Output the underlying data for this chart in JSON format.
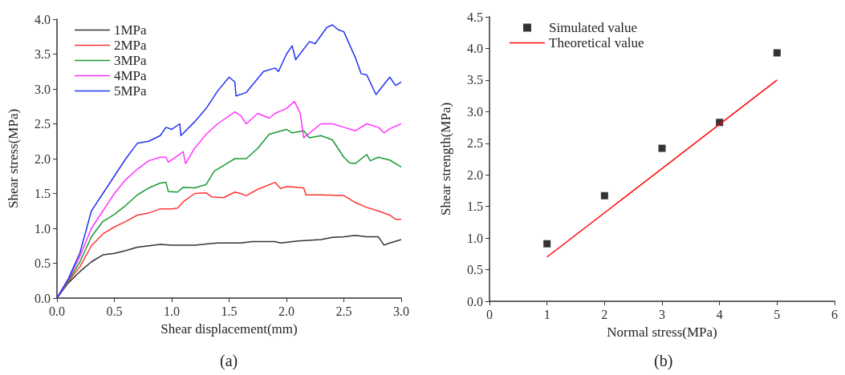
{
  "chart_data": [
    {
      "type": "line",
      "xlabel": "Shear displacement(mm)",
      "ylabel": "Shear stress(MPa)",
      "annotations": [
        "(a)"
      ],
      "legend": "top left",
      "grid": false,
      "marker": "none",
      "line_style": "solid",
      "xlim": [
        0,
        3
      ],
      "xticks": [
        {
          "value": 0,
          "label": "0.0"
        },
        0.5,
        {
          "value": 1,
          "label": "1.0"
        },
        1.5,
        {
          "value": 2,
          "label": "2.0"
        },
        2.5,
        {
          "value": 3,
          "label": "3.0"
        }
      ],
      "ylim": [
        0,
        4
      ],
      "yticks": [
        {
          "value": 0,
          "label": "0.0"
        },
        0.5,
        {
          "value": 1,
          "label": "1.0"
        },
        1.5,
        {
          "value": 2,
          "label": "2.0"
        },
        2.5,
        {
          "value": 3,
          "label": "3.0"
        },
        3.5,
        {
          "value": 4,
          "label": "4.0"
        }
      ],
      "series": [
        {
          "name": "1MPa",
          "color": "#333333",
          "x": [
            0,
            0.1,
            0.2,
            0.3,
            0.4,
            0.5,
            0.6,
            0.7,
            0.8,
            0.9,
            1.0,
            1.2,
            1.4,
            1.6,
            1.7,
            1.9,
            1.95,
            2.1,
            2.3,
            2.4,
            2.5,
            2.6,
            2.7,
            2.8,
            2.85,
            2.9,
            3.0
          ],
          "values": [
            0,
            0.22,
            0.38,
            0.52,
            0.62,
            0.64,
            0.68,
            0.73,
            0.75,
            0.77,
            0.76,
            0.76,
            0.79,
            0.79,
            0.81,
            0.81,
            0.79,
            0.82,
            0.84,
            0.87,
            0.88,
            0.9,
            0.88,
            0.88,
            0.76,
            0.79,
            0.84
          ]
        },
        {
          "name": "2MPa",
          "color": "#ff3333",
          "x": [
            0,
            0.1,
            0.2,
            0.3,
            0.4,
            0.5,
            0.6,
            0.7,
            0.8,
            0.9,
            1.0,
            1.05,
            1.1,
            1.2,
            1.3,
            1.35,
            1.45,
            1.55,
            1.6,
            1.65,
            1.75,
            1.9,
            1.95,
            2.0,
            2.15,
            2.17,
            2.3,
            2.5,
            2.6,
            2.7,
            2.8,
            2.9,
            2.95,
            3.0
          ],
          "values": [
            0,
            0.24,
            0.45,
            0.75,
            0.92,
            1.02,
            1.1,
            1.19,
            1.22,
            1.28,
            1.28,
            1.29,
            1.38,
            1.5,
            1.51,
            1.45,
            1.44,
            1.52,
            1.5,
            1.47,
            1.56,
            1.66,
            1.57,
            1.6,
            1.58,
            1.48,
            1.48,
            1.47,
            1.37,
            1.3,
            1.25,
            1.19,
            1.13,
            1.13
          ]
        },
        {
          "name": "3MPa",
          "color": "#1a9a30",
          "x": [
            0,
            0.1,
            0.2,
            0.3,
            0.4,
            0.5,
            0.6,
            0.7,
            0.8,
            0.9,
            0.95,
            0.97,
            1.05,
            1.1,
            1.2,
            1.3,
            1.37,
            1.5,
            1.55,
            1.65,
            1.75,
            1.85,
            2.0,
            2.05,
            2.15,
            2.2,
            2.3,
            2.4,
            2.5,
            2.55,
            2.6,
            2.7,
            2.73,
            2.8,
            2.9,
            3.0
          ],
          "values": [
            0,
            0.25,
            0.52,
            0.88,
            1.1,
            1.2,
            1.33,
            1.48,
            1.58,
            1.65,
            1.66,
            1.53,
            1.52,
            1.59,
            1.58,
            1.63,
            1.82,
            1.95,
            2.0,
            2.0,
            2.15,
            2.35,
            2.42,
            2.37,
            2.4,
            2.3,
            2.33,
            2.27,
            2.02,
            1.94,
            1.93,
            2.06,
            1.97,
            2.02,
            1.98,
            1.88
          ]
        },
        {
          "name": "4MPa",
          "color": "#ff33ff",
          "x": [
            0,
            0.1,
            0.2,
            0.3,
            0.4,
            0.5,
            0.6,
            0.7,
            0.8,
            0.9,
            0.95,
            0.97,
            1.1,
            1.12,
            1.2,
            1.3,
            1.4,
            1.55,
            1.6,
            1.65,
            1.75,
            1.85,
            1.9,
            2.0,
            2.07,
            2.12,
            2.15,
            2.3,
            2.4,
            2.5,
            2.6,
            2.7,
            2.8,
            2.85,
            2.9,
            3.0
          ],
          "values": [
            0,
            0.27,
            0.6,
            1.0,
            1.25,
            1.5,
            1.7,
            1.85,
            1.97,
            2.02,
            2.02,
            1.95,
            2.1,
            1.93,
            2.15,
            2.35,
            2.5,
            2.67,
            2.62,
            2.5,
            2.65,
            2.58,
            2.65,
            2.72,
            2.82,
            2.65,
            2.3,
            2.5,
            2.5,
            2.45,
            2.4,
            2.5,
            2.45,
            2.37,
            2.43,
            2.5
          ]
        },
        {
          "name": "5MPa",
          "color": "#2233ee",
          "x": [
            0,
            0.1,
            0.2,
            0.3,
            0.4,
            0.5,
            0.6,
            0.7,
            0.8,
            0.9,
            0.95,
            1.0,
            1.07,
            1.08,
            1.2,
            1.3,
            1.4,
            1.5,
            1.55,
            1.56,
            1.65,
            1.8,
            1.9,
            1.93,
            2.0,
            2.05,
            2.08,
            2.2,
            2.25,
            2.35,
            2.4,
            2.45,
            2.5,
            2.6,
            2.65,
            2.7,
            2.78,
            2.9,
            2.95,
            3.0
          ],
          "values": [
            0,
            0.28,
            0.65,
            1.25,
            1.5,
            1.75,
            2.0,
            2.22,
            2.25,
            2.33,
            2.45,
            2.42,
            2.5,
            2.33,
            2.53,
            2.72,
            2.97,
            3.17,
            3.1,
            2.9,
            2.95,
            3.25,
            3.3,
            3.25,
            3.5,
            3.62,
            3.42,
            3.68,
            3.65,
            3.88,
            3.92,
            3.85,
            3.82,
            3.45,
            3.22,
            3.2,
            2.92,
            3.17,
            3.05,
            3.1
          ]
        }
      ]
    },
    {
      "type": "scatter",
      "xlabel": "Normal stress(MPa)",
      "ylabel": "Shear strength(MPa)",
      "annotations": [
        "(b)"
      ],
      "legend": "top left",
      "grid": false,
      "xlim": [
        0,
        6
      ],
      "xticks": [
        0,
        1,
        2,
        3,
        4,
        5,
        6
      ],
      "ylim": [
        0,
        4.5
      ],
      "yticks": [
        {
          "value": 0,
          "label": "0.0"
        },
        0.5,
        {
          "value": 1,
          "label": "1.0"
        },
        1.5,
        {
          "value": 2,
          "label": "2.0"
        },
        2.5,
        {
          "value": 3,
          "label": "3.0"
        },
        3.5,
        {
          "value": 4,
          "label": "4.0"
        },
        4.5
      ],
      "series": [
        {
          "name": "Simulated value",
          "marker": "square",
          "color": "#000000",
          "x": [
            1,
            2,
            3,
            4,
            5
          ],
          "values": [
            0.91,
            1.67,
            2.42,
            2.83,
            3.93
          ]
        },
        {
          "name": "Theoretical value",
          "type": "line",
          "marker": "none",
          "line_style": "solid",
          "color": "#ff0000",
          "x": [
            1,
            5
          ],
          "values": [
            0.7,
            3.5
          ]
        }
      ]
    }
  ]
}
